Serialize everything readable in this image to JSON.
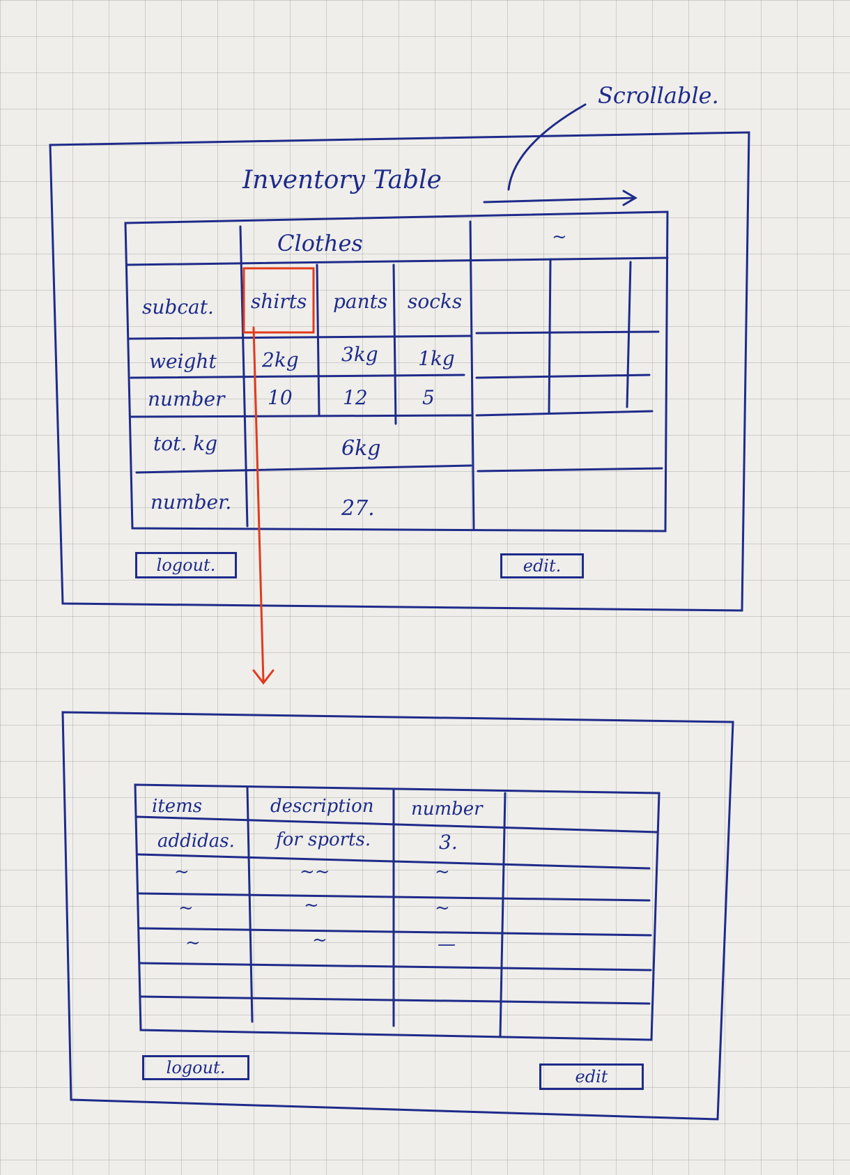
{
  "annotation": {
    "scroll_note": "Scrollable."
  },
  "screen1": {
    "title": "Inventory Table",
    "category_header": "Clothes",
    "next_category_header": "~",
    "row_headers": {
      "subcat": "subcat.",
      "weight": "weight",
      "number": "number",
      "total_kg": "tot. kg",
      "total_number": "number."
    },
    "columns": [
      {
        "subcat": "shirts",
        "weight": "2kg",
        "number": "10"
      },
      {
        "subcat": "pants",
        "weight": "3kg",
        "number": "12"
      },
      {
        "subcat": "socks",
        "weight": "1kg",
        "number": "5"
      }
    ],
    "total_kg": "6kg",
    "total_number": "27.",
    "logout_label": "logout.",
    "edit_label": "edit."
  },
  "screen2": {
    "headers": [
      "items",
      "description",
      "number"
    ],
    "rows": [
      [
        "addidas.",
        "for sports.",
        "3."
      ],
      [
        "~",
        "~~",
        "~"
      ],
      [
        "~",
        "~",
        "~"
      ],
      [
        "~",
        "~",
        "—"
      ]
    ],
    "logout_label": "logout.",
    "edit_label": "edit"
  },
  "colors": {
    "ink": "#1e2b8a",
    "highlight": "#e03a1e"
  }
}
